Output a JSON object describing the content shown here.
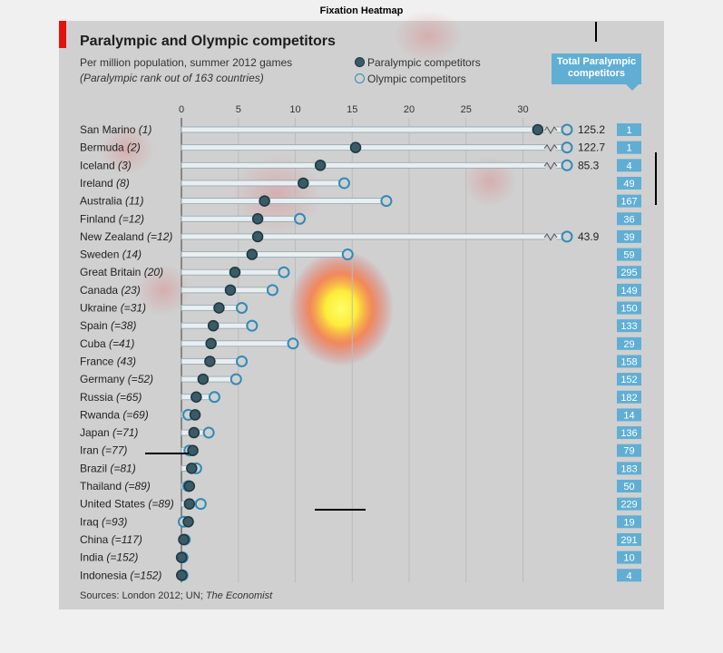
{
  "figure_title": "Fixation Heatmap",
  "header": {
    "title": "Paralympic and Olympic competitors",
    "subtitle": "Per million population, summer 2012 games",
    "note": "(Paralympic rank out of 163 countries)"
  },
  "legend": {
    "paralympic": "Paralympic competitors",
    "olympic": "Olympic competitors"
  },
  "total_box": {
    "line1": "Total Paralympic",
    "line2": "competitors"
  },
  "sources": {
    "prefix": "Sources: London 2012; UN; ",
    "italic": "The Economist"
  },
  "colors": {
    "paralympic": "#3a5b66",
    "olympic_stroke": "#2f8bb5",
    "total_box": "#60aed4",
    "accent_red": "#e3120b"
  },
  "chart_data": {
    "type": "scatter",
    "title": "Paralympic and Olympic competitors",
    "xlabel": "",
    "ylabel": "",
    "xlim": [
      0,
      33
    ],
    "xticks": [
      0,
      5,
      10,
      15,
      20,
      25,
      30
    ],
    "series": [
      {
        "name": "Paralympic competitors",
        "key": "paralympic"
      },
      {
        "name": "Olympic competitors",
        "key": "olympic"
      }
    ],
    "rows": [
      {
        "country": "San Marino (1)",
        "paralympic": 31.3,
        "olympic": 125.2,
        "olympic_label": "125.2",
        "broken": true,
        "total": "1"
      },
      {
        "country": "Bermuda (2)",
        "paralympic": 15.3,
        "olympic": 122.7,
        "olympic_label": "122.7",
        "broken": true,
        "total": "1"
      },
      {
        "country": "Iceland (3)",
        "paralympic": 12.2,
        "olympic": 85.3,
        "olympic_label": "85.3",
        "broken": true,
        "total": "4"
      },
      {
        "country": "Ireland (8)",
        "paralympic": 10.7,
        "olympic": 14.3,
        "total": "49"
      },
      {
        "country": "Australia (11)",
        "paralympic": 7.3,
        "olympic": 18.0,
        "total": "167"
      },
      {
        "country": "Finland (=12)",
        "paralympic": 6.7,
        "olympic": 10.4,
        "total": "36"
      },
      {
        "country": "New Zealand (=12)",
        "paralympic": 6.7,
        "olympic": 43.9,
        "olympic_label": "43.9",
        "broken": true,
        "total": "39"
      },
      {
        "country": "Sweden (14)",
        "paralympic": 6.2,
        "olympic": 14.6,
        "total": "59"
      },
      {
        "country": "Great Britain (20)",
        "paralympic": 4.7,
        "olympic": 9.0,
        "total": "295"
      },
      {
        "country": "Canada (23)",
        "paralympic": 4.3,
        "olympic": 8.0,
        "total": "149"
      },
      {
        "country": "Ukraine (=31)",
        "paralympic": 3.3,
        "olympic": 5.3,
        "total": "150"
      },
      {
        "country": "Spain (=38)",
        "paralympic": 2.8,
        "olympic": 6.2,
        "total": "133"
      },
      {
        "country": "Cuba (=41)",
        "paralympic": 2.6,
        "olympic": 9.8,
        "total": "29"
      },
      {
        "country": "France (43)",
        "paralympic": 2.5,
        "olympic": 5.3,
        "total": "158"
      },
      {
        "country": "Germany (=52)",
        "paralympic": 1.9,
        "olympic": 4.8,
        "total": "152"
      },
      {
        "country": "Russia (=65)",
        "paralympic": 1.3,
        "olympic": 2.9,
        "total": "182"
      },
      {
        "country": "Rwanda (=69)",
        "paralympic": 1.2,
        "olympic": 0.6,
        "total": "14"
      },
      {
        "country": "Japan (=71)",
        "paralympic": 1.1,
        "olympic": 2.4,
        "total": "136"
      },
      {
        "country": "Iran (=77)",
        "paralympic": 1.0,
        "olympic": 0.7,
        "total": "79"
      },
      {
        "country": "Brazil (=81)",
        "paralympic": 0.9,
        "olympic": 1.3,
        "total": "183"
      },
      {
        "country": "Thailand (=89)",
        "paralympic": 0.7,
        "olympic": 0.6,
        "total": "50"
      },
      {
        "country": "United States (=89)",
        "paralympic": 0.7,
        "olympic": 1.7,
        "total": "229"
      },
      {
        "country": "Iraq (=93)",
        "paralympic": 0.6,
        "olympic": 0.2,
        "total": "19"
      },
      {
        "country": "China (=117)",
        "paralympic": 0.2,
        "olympic": 0.3,
        "total": "291"
      },
      {
        "country": "India (=152)",
        "paralympic": 0.01,
        "olympic": 0.1,
        "total": "10"
      },
      {
        "country": "Indonesia (=152)",
        "paralympic": 0.02,
        "olympic": 0.1,
        "total": "4"
      }
    ]
  }
}
